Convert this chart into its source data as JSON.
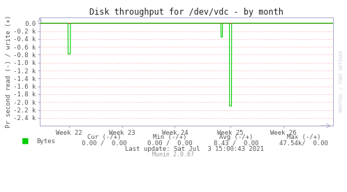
{
  "title": "Disk throughput for /dev/vdc - by month",
  "ylabel": "Pr second read (-) / write (+)",
  "bg_color": "#ffffff",
  "plot_bg_color": "#ffffff",
  "grid_color": "#ffaaaa",
  "axis_color": "#aaaacc",
  "title_color": "#222222",
  "line_color": "#00cc00",
  "zero_line_color": "#cc0000",
  "yticks_k": [
    0.0,
    -0.2,
    -0.4,
    -0.6,
    -0.8,
    -1.0,
    -1.2,
    -1.4,
    -1.6,
    -1.8,
    -2.0,
    -2.2,
    -2.4
  ],
  "ytick_labels": [
    "0.0",
    "-0.2 k",
    "-0.4 k",
    "-0.6 k",
    "-0.8 k",
    "-1.0 k",
    "-1.2 k",
    "-1.4 k",
    "-1.6 k",
    "-1.8 k",
    "-2.0 k",
    "-2.2 k",
    "-2.4 k"
  ],
  "ylim_k": [
    -2.6,
    0.15
  ],
  "xlim": [
    0,
    100
  ],
  "xtick_positions": [
    10,
    28,
    46,
    65,
    83
  ],
  "xtick_labels": [
    "Week 22",
    "Week 23",
    "Week 24",
    "Week 25",
    "Week 26"
  ],
  "spike1_x": 10,
  "spike1_y_k": -0.78,
  "spike2_x": 62,
  "spike2_y_k": -0.35,
  "spike3_x": 65,
  "spike3_y_k": -2.1,
  "watermark": "RRDTOOL / TOBI OETIKER",
  "legend_label": "Bytes",
  "legend_color": "#00cc00",
  "footer_cur": "Cur (-/+)",
  "footer_min": "Min (-/+)",
  "footer_avg": "Avg (-/+)",
  "footer_max": "Max (-/+)",
  "footer_cur_val": "0.00 /  0.00",
  "footer_min_val": "0.00 /  0.00",
  "footer_avg_val": "8.43 /  0.00",
  "footer_max_val": "47.54k/  0.00",
  "footer_lastupdate": "Last update: Sat Jul  3 15:00:43 2021",
  "munin_version": "Munin 2.0.67",
  "text_color": "#555555",
  "munin_color": "#999999"
}
